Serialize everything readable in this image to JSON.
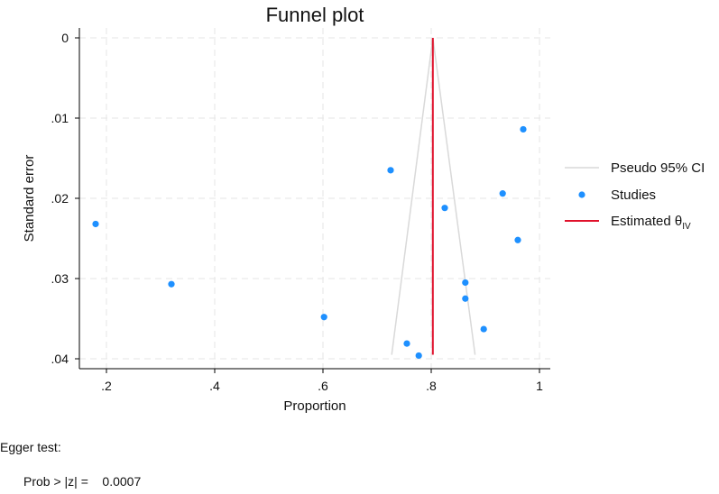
{
  "chart_data": {
    "type": "scatter",
    "title": "Funnel plot",
    "xlabel": "Proportion",
    "ylabel": "Standard error",
    "xlim": [
      0.17,
      1.0
    ],
    "ylim": [
      0.04,
      0.0
    ],
    "y_axis_reversed": true,
    "grid": true,
    "legend_position": "right",
    "x_ticks": [
      0.2,
      0.4,
      0.6,
      0.8,
      1.0
    ],
    "x_tick_labels": [
      ".2",
      ".4",
      ".6",
      ".8",
      "1"
    ],
    "y_ticks": [
      0.0,
      0.01,
      0.02,
      0.03,
      0.04
    ],
    "y_tick_labels": [
      "0",
      ".01",
      ".02",
      ".03",
      ".04"
    ],
    "estimate": 0.803,
    "pseudo_ci": {
      "lower": [
        [
          0.803,
          0.0
        ],
        [
          0.727,
          0.0395
        ]
      ],
      "upper": [
        [
          0.803,
          0.0
        ],
        [
          0.881,
          0.0395
        ]
      ]
    },
    "studies": [
      {
        "x": 0.97,
        "y": 0.0114
      },
      {
        "x": 0.725,
        "y": 0.0165
      },
      {
        "x": 0.932,
        "y": 0.0194
      },
      {
        "x": 0.825,
        "y": 0.0212
      },
      {
        "x": 0.18,
        "y": 0.0232
      },
      {
        "x": 0.96,
        "y": 0.0252
      },
      {
        "x": 0.863,
        "y": 0.0305
      },
      {
        "x": 0.32,
        "y": 0.0307
      },
      {
        "x": 0.863,
        "y": 0.0325
      },
      {
        "x": 0.602,
        "y": 0.0348
      },
      {
        "x": 0.897,
        "y": 0.0363
      },
      {
        "x": 0.755,
        "y": 0.0381
      },
      {
        "x": 0.777,
        "y": 0.0396
      }
    ],
    "legend": [
      {
        "label": "Pseudo 95% CI",
        "kind": "line",
        "color": "#d9d9d9"
      },
      {
        "label": "Studies",
        "kind": "marker",
        "color": "#1e90ff"
      },
      {
        "label": "Estimated θ",
        "sub": "IV",
        "kind": "line",
        "color": "#e0112b"
      }
    ],
    "colors": {
      "grid": "#e6e6e6",
      "axis": "#000000",
      "ci": "#d9d9d9",
      "point": "#1e90ff",
      "estimate": "#e0112b"
    }
  },
  "egger": {
    "title": "Egger test:",
    "line": "Prob > |z| =    0.0007"
  }
}
